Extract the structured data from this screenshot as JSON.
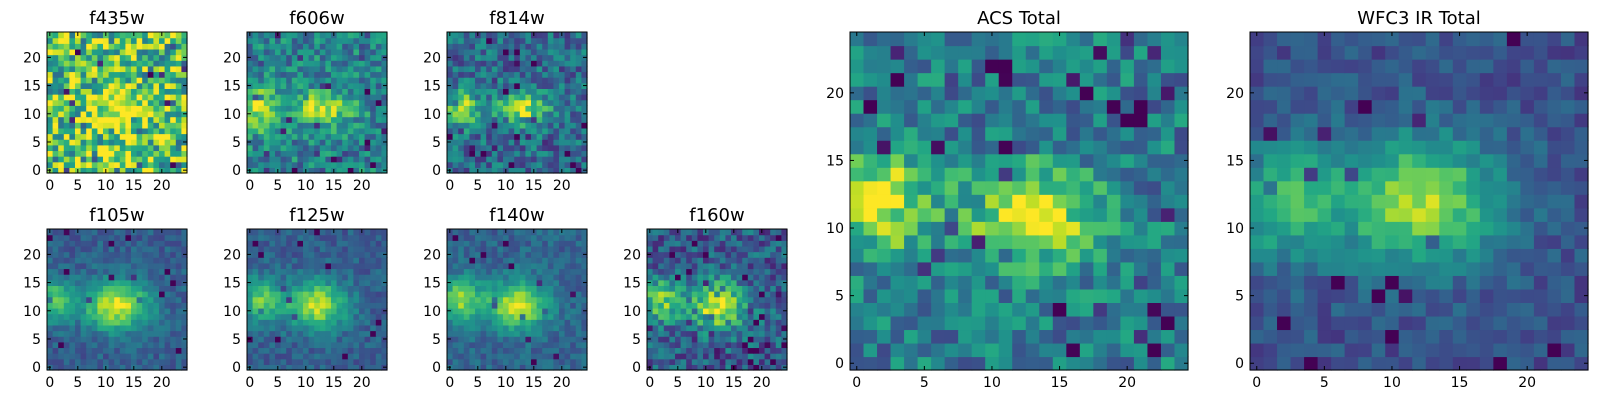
{
  "chart_data": [
    {
      "type": "heatmap",
      "title": "f435w",
      "colormap": "viridis",
      "xlim": [
        0,
        24
      ],
      "ylim": [
        0,
        24
      ],
      "xticks": [
        "0",
        "5",
        "10",
        "15",
        "20"
      ],
      "yticks": [
        "0",
        "5",
        "10",
        "15",
        "20"
      ],
      "grid": false,
      "grid_size": 25,
      "noise_level": "high",
      "sources": [
        {
          "x": 13,
          "y": 11,
          "peak": 0.4,
          "sx": 4,
          "sy": 2.5
        }
      ],
      "background_level": 0.72
    },
    {
      "type": "heatmap",
      "title": "f606w",
      "colormap": "viridis",
      "xlim": [
        0,
        24
      ],
      "ylim": [
        0,
        24
      ],
      "xticks": [
        "0",
        "5",
        "10",
        "15",
        "20"
      ],
      "yticks": [
        "0",
        "5",
        "10",
        "15",
        "20"
      ],
      "grid": false,
      "grid_size": 25,
      "noise_level": "medium",
      "sources": [
        {
          "x": 2,
          "y": 11,
          "peak": 0.5,
          "sx": 2.2,
          "sy": 2.6
        },
        {
          "x": 13,
          "y": 11,
          "peak": 0.45,
          "sx": 3.5,
          "sy": 2.2
        }
      ],
      "background_level": 0.45
    },
    {
      "type": "heatmap",
      "title": "f814w",
      "colormap": "viridis",
      "xlim": [
        0,
        24
      ],
      "ylim": [
        0,
        24
      ],
      "xticks": [
        "0",
        "5",
        "10",
        "15",
        "20"
      ],
      "yticks": [
        "0",
        "5",
        "10",
        "15",
        "20"
      ],
      "grid": false,
      "grid_size": 25,
      "noise_level": "medium",
      "sources": [
        {
          "x": 2,
          "y": 11,
          "peak": 0.55,
          "sx": 2,
          "sy": 2.4
        },
        {
          "x": 13,
          "y": 11,
          "peak": 0.55,
          "sx": 3.2,
          "sy": 2.2
        }
      ],
      "background_level": 0.35
    },
    {
      "type": "heatmap",
      "title": "f105w",
      "colormap": "viridis",
      "xlim": [
        0,
        24
      ],
      "ylim": [
        0,
        24
      ],
      "xticks": [
        "0",
        "5",
        "10",
        "15",
        "20"
      ],
      "yticks": [
        "0",
        "5",
        "10",
        "15",
        "20"
      ],
      "grid": false,
      "grid_size": 25,
      "noise_level": "low",
      "sources": [
        {
          "x": 1,
          "y": 12,
          "peak": 0.45,
          "sx": 2.2,
          "sy": 2.6
        },
        {
          "x": 12,
          "y": 11,
          "peak": 0.65,
          "sx": 4.2,
          "sy": 3
        }
      ],
      "background_level": 0.3
    },
    {
      "type": "heatmap",
      "title": "f125w",
      "colormap": "viridis",
      "xlim": [
        0,
        24
      ],
      "ylim": [
        0,
        24
      ],
      "xticks": [
        "0",
        "5",
        "10",
        "15",
        "20"
      ],
      "yticks": [
        "0",
        "5",
        "10",
        "15",
        "20"
      ],
      "grid": false,
      "grid_size": 25,
      "noise_level": "low",
      "sources": [
        {
          "x": 2,
          "y": 12,
          "peak": 0.45,
          "sx": 2.5,
          "sy": 2.8
        },
        {
          "x": 12,
          "y": 11,
          "peak": 0.6,
          "sx": 3.8,
          "sy": 3
        }
      ],
      "background_level": 0.3
    },
    {
      "type": "heatmap",
      "title": "f140w",
      "colormap": "viridis",
      "xlim": [
        0,
        24
      ],
      "ylim": [
        0,
        24
      ],
      "xticks": [
        "0",
        "5",
        "10",
        "15",
        "20"
      ],
      "yticks": [
        "0",
        "5",
        "10",
        "15",
        "20"
      ],
      "grid": false,
      "grid_size": 25,
      "noise_level": "low",
      "sources": [
        {
          "x": 2,
          "y": 12,
          "peak": 0.5,
          "sx": 2.5,
          "sy": 2.8
        },
        {
          "x": 12,
          "y": 11,
          "peak": 0.62,
          "sx": 3.8,
          "sy": 3
        }
      ],
      "background_level": 0.32
    },
    {
      "type": "heatmap",
      "title": "f160w",
      "colormap": "viridis",
      "xlim": [
        0,
        24
      ],
      "ylim": [
        0,
        24
      ],
      "xticks": [
        "0",
        "5",
        "10",
        "15",
        "20"
      ],
      "yticks": [
        "0",
        "5",
        "10",
        "15",
        "20"
      ],
      "grid": false,
      "grid_size": 25,
      "noise_level": "medium",
      "sources": [
        {
          "x": 2,
          "y": 12,
          "peak": 0.5,
          "sx": 2.3,
          "sy": 2.6
        },
        {
          "x": 12,
          "y": 11,
          "peak": 0.62,
          "sx": 3.6,
          "sy": 3
        }
      ],
      "background_level": 0.3
    },
    {
      "type": "heatmap",
      "title": "ACS Total",
      "colormap": "viridis",
      "xlim": [
        0,
        24
      ],
      "ylim": [
        0,
        24
      ],
      "xticks": [
        "0",
        "5",
        "10",
        "15",
        "20"
      ],
      "yticks": [
        "0",
        "5",
        "10",
        "15",
        "20"
      ],
      "grid": false,
      "grid_size": 25,
      "noise_level": "medium",
      "sources": [
        {
          "x": 2,
          "y": 12,
          "peak": 0.55,
          "sx": 2.4,
          "sy": 2.6
        },
        {
          "x": 13,
          "y": 11,
          "peak": 0.55,
          "sx": 3.5,
          "sy": 2.4
        }
      ],
      "background_level": 0.42
    },
    {
      "type": "heatmap",
      "title": "WFC3 IR Total",
      "colormap": "viridis",
      "xlim": [
        0,
        24
      ],
      "ylim": [
        0,
        24
      ],
      "xticks": [
        "0",
        "5",
        "10",
        "15",
        "20"
      ],
      "yticks": [
        "0",
        "5",
        "10",
        "15",
        "20"
      ],
      "grid": false,
      "grid_size": 25,
      "noise_level": "low",
      "sources": [
        {
          "x": 2,
          "y": 12,
          "peak": 0.45,
          "sx": 2.6,
          "sy": 3
        },
        {
          "x": 12,
          "y": 12,
          "peak": 0.62,
          "sx": 4.2,
          "sy": 3.4
        }
      ],
      "background_level": 0.25
    }
  ]
}
